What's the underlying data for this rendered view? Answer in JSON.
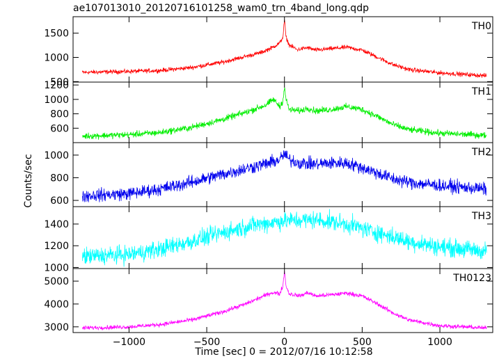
{
  "chart_data": {
    "type": "line",
    "title": "ae107013010_20120716101258_wam0_trn_4band_long.qdp",
    "xlabel": "Time [sec] 0 = 2012/07/16 10:12:58",
    "ylabel": "Counts/sec",
    "xlim": [
      -1360,
      1340
    ],
    "x_ticks": [
      -1000,
      -500,
      0,
      500,
      1000
    ],
    "x_tick_labels": [
      "−1000",
      "−500",
      "0",
      "500",
      "1000"
    ],
    "grid": false,
    "panels": [
      {
        "name": "TH0",
        "color": "#ff0000",
        "ylim": [
          490,
          1840
        ],
        "y_ticks": [
          500,
          1000,
          1500
        ],
        "y_tick_labels": [
          "500",
          "1000",
          "1500"
        ],
        "noise": 22,
        "profile": [
          [
            -1300,
            690
          ],
          [
            -1000,
            710
          ],
          [
            -800,
            730
          ],
          [
            -600,
            790
          ],
          [
            -400,
            900
          ],
          [
            -250,
            1020
          ],
          [
            -150,
            1100
          ],
          [
            -80,
            1200
          ],
          [
            -30,
            1300
          ],
          [
            -10,
            1420
          ],
          [
            0,
            1780
          ],
          [
            10,
            1420
          ],
          [
            30,
            1260
          ],
          [
            80,
            1160
          ],
          [
            150,
            1200
          ],
          [
            200,
            1150
          ],
          [
            300,
            1180
          ],
          [
            400,
            1210
          ],
          [
            500,
            1150
          ],
          [
            600,
            1000
          ],
          [
            700,
            850
          ],
          [
            800,
            750
          ],
          [
            1000,
            680
          ],
          [
            1300,
            620
          ]
        ]
      },
      {
        "name": "TH1",
        "color": "#00ee00",
        "ylim": [
          400,
          1240
        ],
        "y_ticks": [
          600,
          800,
          1000,
          1200
        ],
        "y_tick_labels": [
          "600",
          "800",
          "1000",
          "1200"
        ],
        "noise": 22,
        "profile": [
          [
            -1300,
            490
          ],
          [
            -1000,
            510
          ],
          [
            -800,
            540
          ],
          [
            -600,
            610
          ],
          [
            -400,
            720
          ],
          [
            -250,
            820
          ],
          [
            -120,
            920
          ],
          [
            -70,
            1000
          ],
          [
            -30,
            900
          ],
          [
            -10,
            980
          ],
          [
            0,
            1180
          ],
          [
            10,
            1000
          ],
          [
            30,
            860
          ],
          [
            100,
            840
          ],
          [
            150,
            880
          ],
          [
            200,
            840
          ],
          [
            300,
            860
          ],
          [
            400,
            900
          ],
          [
            500,
            860
          ],
          [
            600,
            760
          ],
          [
            700,
            650
          ],
          [
            800,
            580
          ],
          [
            1000,
            530
          ],
          [
            1300,
            500
          ]
        ]
      },
      {
        "name": "TH2",
        "color": "#0000ee",
        "ylim": [
          545,
          1110
        ],
        "y_ticks": [
          600,
          800,
          1000
        ],
        "y_tick_labels": [
          "600",
          "800",
          "1000"
        ],
        "noise": 28,
        "profile": [
          [
            -1300,
            640
          ],
          [
            -1000,
            660
          ],
          [
            -800,
            700
          ],
          [
            -600,
            760
          ],
          [
            -400,
            830
          ],
          [
            -250,
            880
          ],
          [
            -100,
            930
          ],
          [
            -30,
            960
          ],
          [
            0,
            1010
          ],
          [
            30,
            960
          ],
          [
            100,
            930
          ],
          [
            200,
            920
          ],
          [
            300,
            930
          ],
          [
            400,
            930
          ],
          [
            500,
            890
          ],
          [
            600,
            840
          ],
          [
            700,
            790
          ],
          [
            800,
            760
          ],
          [
            1000,
            730
          ],
          [
            1300,
            700
          ]
        ]
      },
      {
        "name": "TH3",
        "color": "#00ffff",
        "ylim": [
          990,
          1560
        ],
        "y_ticks": [
          1000,
          1200,
          1400
        ],
        "y_tick_labels": [
          "1000",
          "1200",
          "1400"
        ],
        "noise": 40,
        "profile": [
          [
            -1300,
            1100
          ],
          [
            -1000,
            1120
          ],
          [
            -800,
            1170
          ],
          [
            -600,
            1240
          ],
          [
            -400,
            1320
          ],
          [
            -200,
            1390
          ],
          [
            0,
            1430
          ],
          [
            200,
            1440
          ],
          [
            400,
            1400
          ],
          [
            600,
            1320
          ],
          [
            800,
            1240
          ],
          [
            1000,
            1190
          ],
          [
            1300,
            1150
          ]
        ]
      },
      {
        "name": "TH0123",
        "color": "#ff00ff",
        "ylim": [
          2750,
          5550
        ],
        "y_ticks": [
          3000,
          4000,
          5000
        ],
        "y_tick_labels": [
          "3000",
          "4000",
          "5000"
        ],
        "noise": 45,
        "profile": [
          [
            -1300,
            2950
          ],
          [
            -1000,
            3000
          ],
          [
            -800,
            3100
          ],
          [
            -600,
            3300
          ],
          [
            -400,
            3650
          ],
          [
            -250,
            4000
          ],
          [
            -150,
            4300
          ],
          [
            -80,
            4500
          ],
          [
            -30,
            4450
          ],
          [
            -10,
            4800
          ],
          [
            0,
            5450
          ],
          [
            10,
            4800
          ],
          [
            30,
            4450
          ],
          [
            100,
            4350
          ],
          [
            150,
            4500
          ],
          [
            200,
            4350
          ],
          [
            300,
            4400
          ],
          [
            400,
            4480
          ],
          [
            500,
            4350
          ],
          [
            600,
            4000
          ],
          [
            700,
            3600
          ],
          [
            800,
            3300
          ],
          [
            1000,
            3050
          ],
          [
            1300,
            2950
          ]
        ]
      }
    ]
  }
}
